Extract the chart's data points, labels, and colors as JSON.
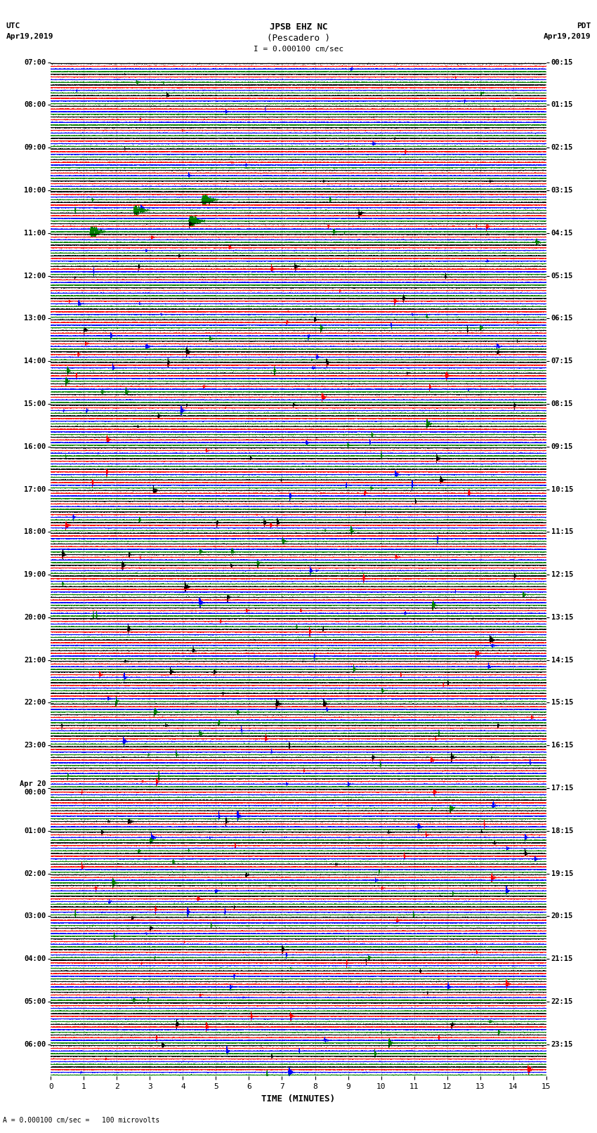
{
  "title_line1": "JPSB EHZ NC",
  "title_line2": "(Pescadero )",
  "scale_text": "I = 0.000100 cm/sec",
  "scale_label2": "A = 0.000100 cm/sec =   100 microvolts",
  "left_label_top": "UTC",
  "left_label_date": "Apr19,2019",
  "right_label_top": "PDT",
  "right_label_date": "Apr19,2019",
  "xlabel": "TIME (MINUTES)",
  "colors": [
    "black",
    "red",
    "blue",
    "green"
  ],
  "utc_labels": [
    "07:00",
    "",
    "",
    "",
    "08:00",
    "",
    "",
    "",
    "09:00",
    "",
    "",
    "",
    "10:00",
    "",
    "",
    "",
    "11:00",
    "",
    "",
    "",
    "12:00",
    "",
    "",
    "",
    "13:00",
    "",
    "",
    "",
    "14:00",
    "",
    "",
    "",
    "15:00",
    "",
    "",
    "",
    "16:00",
    "",
    "",
    "",
    "17:00",
    "",
    "",
    "",
    "18:00",
    "",
    "",
    "",
    "19:00",
    "",
    "",
    "",
    "20:00",
    "",
    "",
    "",
    "21:00",
    "",
    "",
    "",
    "22:00",
    "",
    "",
    "",
    "23:00",
    "",
    "",
    "",
    "Apr 20\n00:00",
    "",
    "",
    "",
    "01:00",
    "",
    "",
    "",
    "02:00",
    "",
    "",
    "",
    "03:00",
    "",
    "",
    "",
    "04:00",
    "",
    "",
    "",
    "05:00",
    "",
    "",
    "",
    "06:00",
    "",
    ""
  ],
  "pdt_labels": [
    "00:15",
    "",
    "",
    "",
    "01:15",
    "",
    "",
    "",
    "02:15",
    "",
    "",
    "",
    "03:15",
    "",
    "",
    "",
    "04:15",
    "",
    "",
    "",
    "05:15",
    "",
    "",
    "",
    "06:15",
    "",
    "",
    "",
    "07:15",
    "",
    "",
    "",
    "08:15",
    "",
    "",
    "",
    "09:15",
    "",
    "",
    "",
    "10:15",
    "",
    "",
    "",
    "11:15",
    "",
    "",
    "",
    "12:15",
    "",
    "",
    "",
    "13:15",
    "",
    "",
    "",
    "14:15",
    "",
    "",
    "",
    "15:15",
    "",
    "",
    "",
    "16:15",
    "",
    "",
    "",
    "17:15",
    "",
    "",
    "",
    "18:15",
    "",
    "",
    "",
    "19:15",
    "",
    "",
    "",
    "20:15",
    "",
    "",
    "",
    "21:15",
    "",
    "",
    "",
    "22:15",
    "",
    "",
    "",
    "23:15",
    "",
    ""
  ],
  "n_rows": 95,
  "n_traces_per_row": 4,
  "duration_minutes": 15,
  "background_color": "white",
  "grid_color": "#aaaaaa",
  "grid_minutes": [
    1,
    2,
    3,
    4,
    5,
    6,
    7,
    8,
    9,
    10,
    11,
    12,
    13,
    14
  ]
}
